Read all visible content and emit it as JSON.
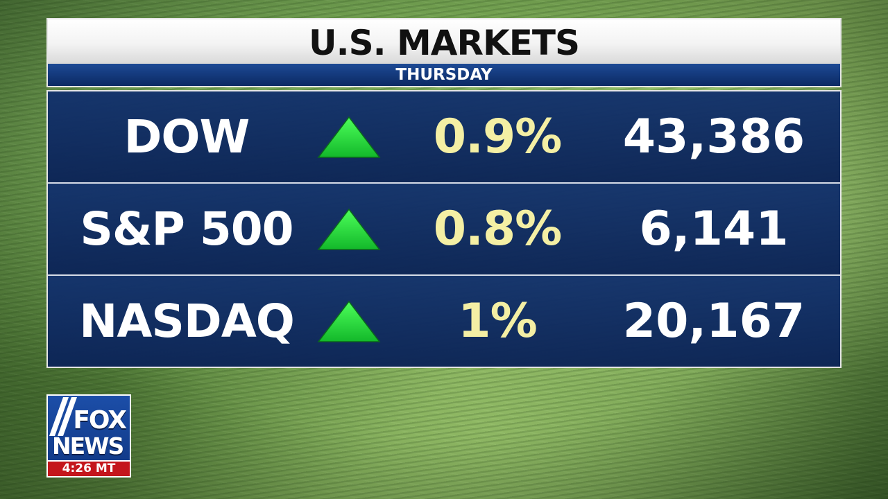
{
  "header": {
    "title": "U.S. MARKETS",
    "subtitle": "THURSDAY"
  },
  "markets": [
    {
      "name": "DOW",
      "direction": "up",
      "change": "0.9%",
      "value": "43,386"
    },
    {
      "name": "S&P 500",
      "direction": "up",
      "change": "0.8%",
      "value": "6,141"
    },
    {
      "name": "NASDAQ",
      "direction": "up",
      "change": "1%",
      "value": "20,167"
    }
  ],
  "logo": {
    "line1": "FOX",
    "line2": "NEWS",
    "time": "4:26 MT"
  },
  "colors": {
    "panel_blue": "#143a7c",
    "up_arrow": "#22d640",
    "percent_text": "#f4efa4",
    "logo_red": "#c4161c"
  },
  "icons": {
    "direction": "triangle-up-icon"
  }
}
